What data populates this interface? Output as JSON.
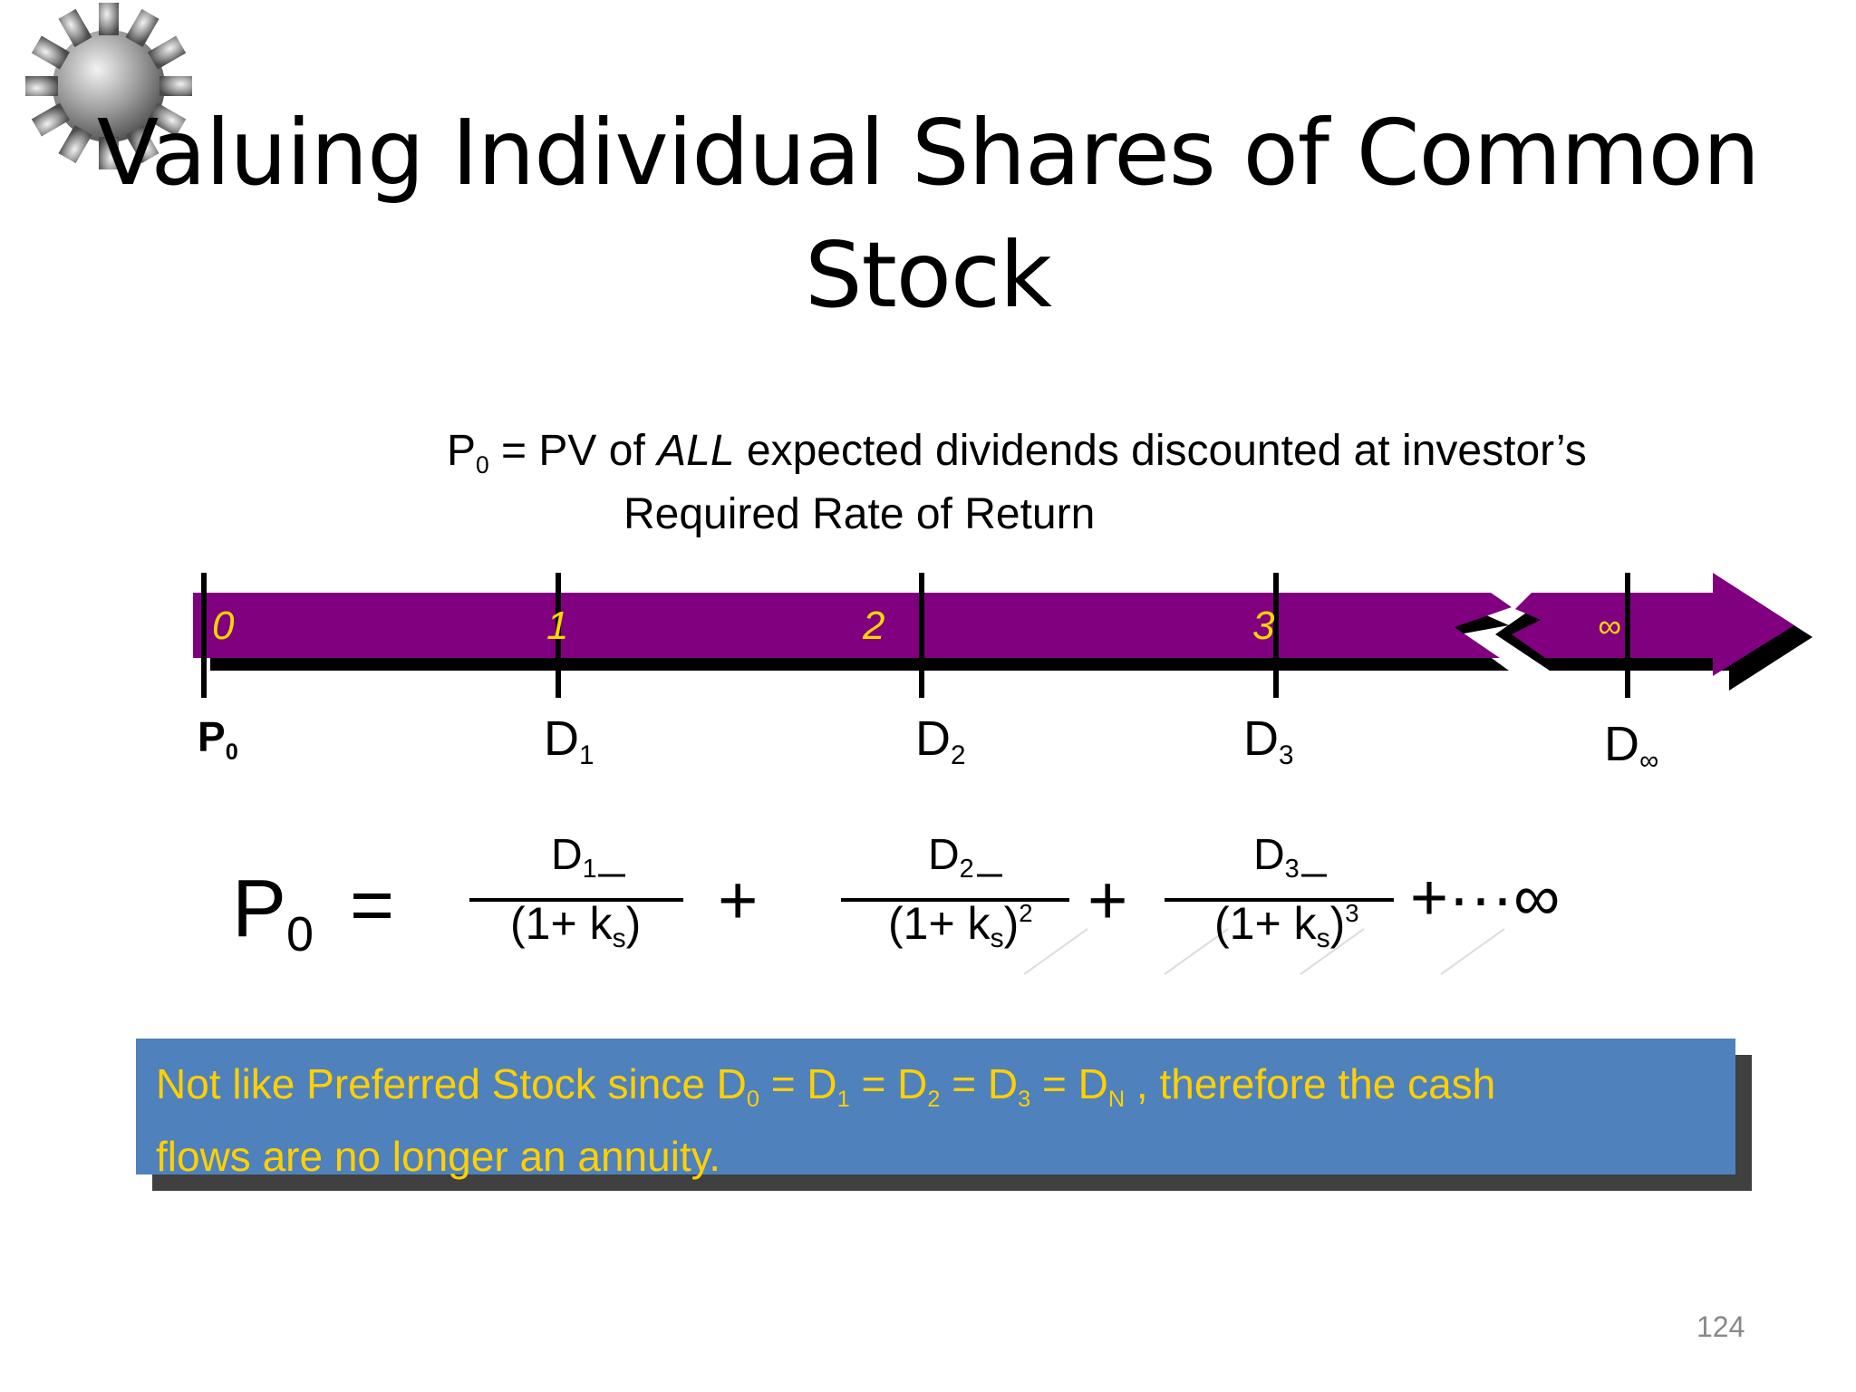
{
  "title": {
    "line1": "Valuing Individual Shares of Common",
    "line2": "Stock"
  },
  "gear_icon": "gear-icon",
  "definition": {
    "symbol": "P",
    "symbol_sub": "0",
    "prefix": " = PV of ",
    "emphasis": "ALL",
    "suffix": " expected dividends discounted at investor’s",
    "line2": "Required Rate of Return"
  },
  "timeline": {
    "arrow_color": "#800080",
    "number_color": "#ffd700",
    "periods": [
      "0",
      "1",
      "2",
      "3",
      "∞"
    ],
    "labels": [
      {
        "main": "P",
        "sub": "0"
      },
      {
        "main": "D",
        "sub": "1"
      },
      {
        "main": "D",
        "sub": "2"
      },
      {
        "main": "D",
        "sub": "3"
      },
      {
        "main": "D",
        "sub": "∞"
      }
    ]
  },
  "formula": {
    "lhs": "P",
    "lhs_sub": "0",
    "equals": "=",
    "terms": [
      {
        "num": "D",
        "num_sub": "1",
        "den_a": "(1+ k",
        "den_sub": "s",
        "den_b": ")",
        "den_sup": ""
      },
      {
        "num": "D",
        "num_sub": "2",
        "den_a": "(1+ k",
        "den_sub": "s",
        "den_b": ")",
        "den_sup": "2"
      },
      {
        "num": "D",
        "num_sub": "3",
        "den_a": "(1+ k",
        "den_sub": "s",
        "den_b": ")",
        "den_sup": "3"
      }
    ],
    "plus": "+",
    "tail": "+···∞"
  },
  "callout": {
    "background": "#4f81bd",
    "text_color": "#ffd000",
    "text_a": "Not like Preferred Stock since   D",
    "sub0": "0",
    "eq1": " = D",
    "sub1": "1",
    "eq2": " = D",
    "sub2": "2",
    "eq3": " = D",
    "sub3": "3",
    "eq4": " = D",
    "subN": "N",
    "text_b": " , therefore the cash",
    "line2": "flows are no longer an annuity."
  },
  "page_number": "124"
}
